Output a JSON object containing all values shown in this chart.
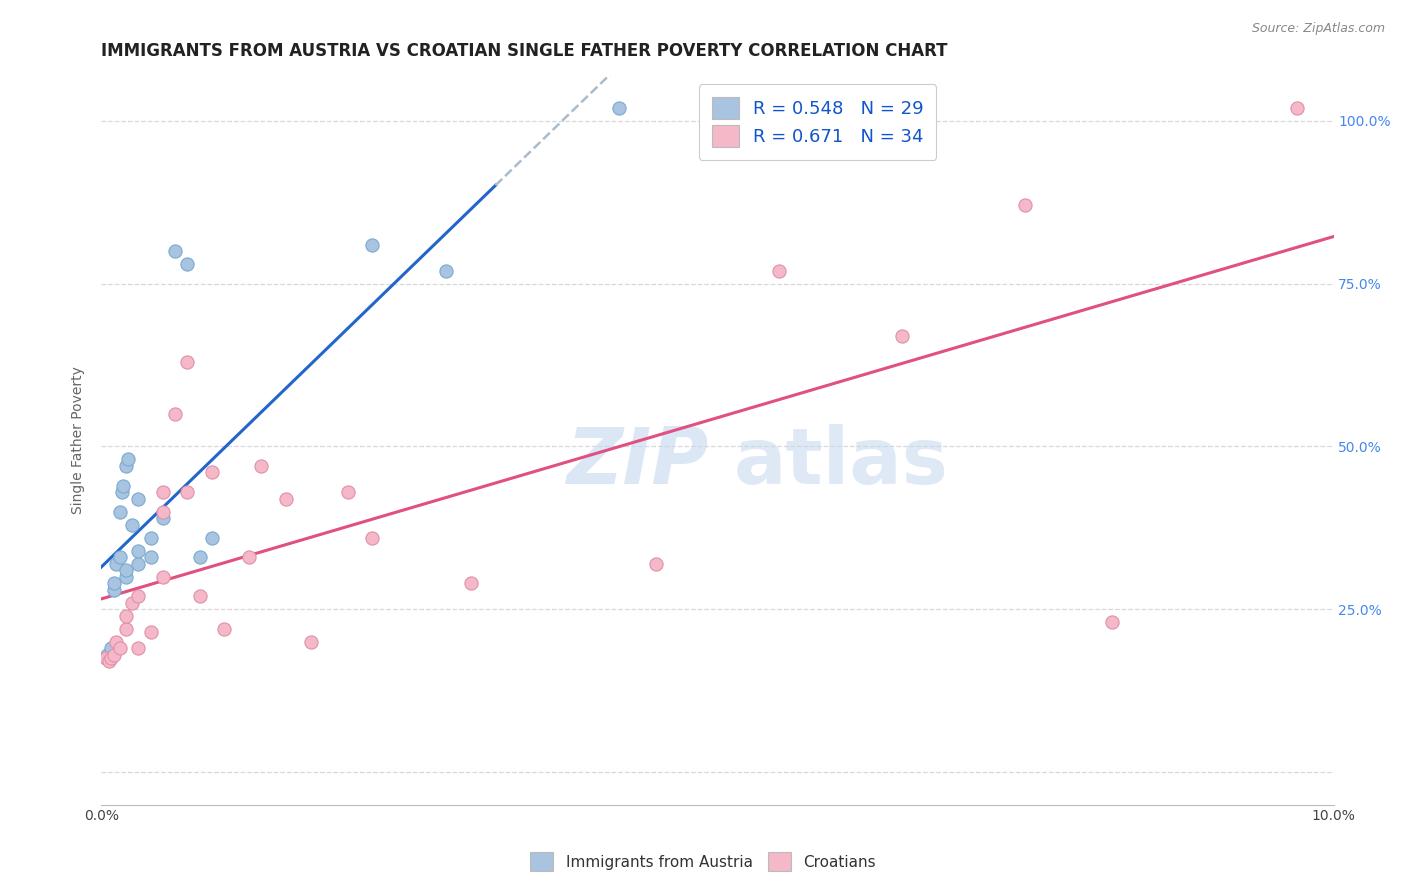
{
  "title": "IMMIGRANTS FROM AUSTRIA VS CROATIAN SINGLE FATHER POVERTY CORRELATION CHART",
  "source": "Source: ZipAtlas.com",
  "ylabel": "Single Father Poverty",
  "xlim": [
    0.0,
    0.1
  ],
  "ylim": [
    -0.05,
    1.07
  ],
  "xticks": [
    0.0,
    0.02,
    0.04,
    0.06,
    0.08,
    0.1
  ],
  "xticklabels": [
    "0.0%",
    "",
    "",
    "",
    "",
    "10.0%"
  ],
  "yticks": [
    0.0,
    0.25,
    0.5,
    0.75,
    1.0
  ],
  "yticklabels": [
    "",
    "25.0%",
    "50.0%",
    "75.0%",
    "100.0%"
  ],
  "legend_r1": "R = 0.548   N = 29",
  "legend_r2": "R = 0.671   N = 34",
  "color_austria": "#a8c4e0",
  "color_croatian": "#f4b8c8",
  "trendline_austria_color": "#2266cc",
  "trendline_croatian_color": "#e05080",
  "color_austria_border": "#7aaad0",
  "color_croatian_border": "#e090a8",
  "austria_x": [
    0.0004,
    0.0005,
    0.0006,
    0.0008,
    0.001,
    0.001,
    0.0012,
    0.0015,
    0.0015,
    0.0017,
    0.0018,
    0.002,
    0.002,
    0.002,
    0.0022,
    0.0025,
    0.003,
    0.003,
    0.003,
    0.004,
    0.004,
    0.005,
    0.006,
    0.007,
    0.008,
    0.009,
    0.022,
    0.028,
    0.042
  ],
  "austria_y": [
    0.175,
    0.18,
    0.175,
    0.19,
    0.28,
    0.29,
    0.32,
    0.33,
    0.4,
    0.43,
    0.44,
    0.3,
    0.31,
    0.47,
    0.48,
    0.38,
    0.32,
    0.34,
    0.42,
    0.33,
    0.36,
    0.39,
    0.8,
    0.78,
    0.33,
    0.36,
    0.81,
    0.77,
    1.02
  ],
  "croatian_x": [
    0.0004,
    0.0006,
    0.0008,
    0.001,
    0.0012,
    0.0015,
    0.002,
    0.002,
    0.0025,
    0.003,
    0.003,
    0.004,
    0.005,
    0.005,
    0.005,
    0.006,
    0.007,
    0.007,
    0.008,
    0.009,
    0.01,
    0.012,
    0.013,
    0.015,
    0.017,
    0.02,
    0.022,
    0.03,
    0.045,
    0.055,
    0.065,
    0.075,
    0.082,
    0.097
  ],
  "croatian_y": [
    0.175,
    0.17,
    0.175,
    0.18,
    0.2,
    0.19,
    0.22,
    0.24,
    0.26,
    0.19,
    0.27,
    0.215,
    0.3,
    0.4,
    0.43,
    0.55,
    0.43,
    0.63,
    0.27,
    0.46,
    0.22,
    0.33,
    0.47,
    0.42,
    0.2,
    0.43,
    0.36,
    0.29,
    0.32,
    0.77,
    0.67,
    0.87,
    0.23,
    1.02
  ],
  "background_color": "#ffffff",
  "grid_color": "#d8d8d8",
  "title_fontsize": 12,
  "axis_label_fontsize": 10,
  "tick_fontsize": 10,
  "legend_fontsize": 13,
  "scatter_size": 90
}
